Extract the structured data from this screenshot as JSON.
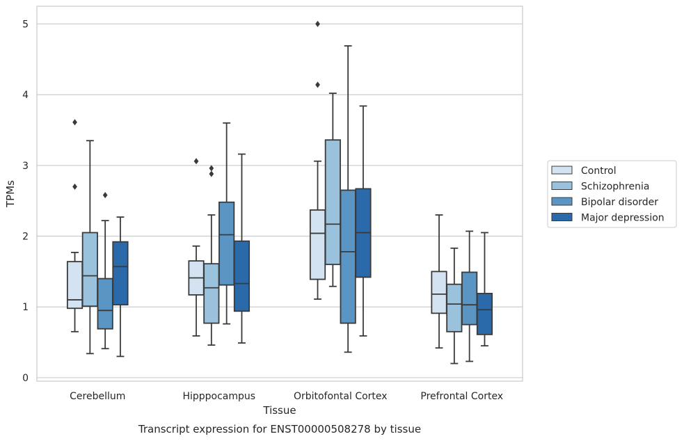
{
  "chart_data": {
    "type": "boxplot",
    "title": "",
    "caption": "Transcript expression for ENST00000508278 by tissue",
    "xlabel": "Tissue",
    "ylabel": "TPMs",
    "ylim": [
      -0.05,
      5.25
    ],
    "yticks": [
      0,
      1,
      2,
      3,
      4,
      5
    ],
    "grid": "horizontal",
    "legend_position": "right",
    "categories": [
      "Cerebellum",
      "Hipppocampus",
      "Orbitofontal Cortex",
      "Prefrontal Cortex"
    ],
    "series": [
      {
        "name": "Control",
        "color": "#d3e3f2",
        "boxes": [
          {
            "whislo": 0.65,
            "q1": 0.98,
            "med": 1.1,
            "q3": 1.64,
            "whishi": 1.77,
            "fliers": [
              2.7,
              3.61
            ]
          },
          {
            "whislo": 0.59,
            "q1": 1.17,
            "med": 1.41,
            "q3": 1.65,
            "whishi": 1.86,
            "fliers": [
              3.06
            ]
          },
          {
            "whislo": 1.11,
            "q1": 1.39,
            "med": 2.04,
            "q3": 2.37,
            "whishi": 3.06,
            "fliers": [
              4.14,
              5.0
            ]
          },
          {
            "whislo": 0.42,
            "q1": 0.91,
            "med": 1.18,
            "q3": 1.5,
            "whishi": 2.3,
            "fliers": []
          }
        ]
      },
      {
        "name": "Schizophrenia",
        "color": "#9ac2dc",
        "boxes": [
          {
            "whislo": 0.34,
            "q1": 1.01,
            "med": 1.44,
            "q3": 2.05,
            "whishi": 3.35,
            "fliers": []
          },
          {
            "whislo": 0.46,
            "q1": 0.77,
            "med": 1.27,
            "q3": 1.61,
            "whishi": 2.3,
            "fliers": [
              2.88,
              2.96
            ]
          },
          {
            "whislo": 1.29,
            "q1": 1.6,
            "med": 2.17,
            "q3": 3.36,
            "whishi": 4.02,
            "fliers": []
          },
          {
            "whislo": 0.2,
            "q1": 0.65,
            "med": 1.04,
            "q3": 1.32,
            "whishi": 1.83,
            "fliers": []
          }
        ]
      },
      {
        "name": "Bipolar disorder",
        "color": "#5a95c4",
        "boxes": [
          {
            "whislo": 0.41,
            "q1": 0.69,
            "med": 0.95,
            "q3": 1.4,
            "whishi": 2.22,
            "fliers": [
              2.58
            ]
          },
          {
            "whislo": 0.76,
            "q1": 1.31,
            "med": 2.02,
            "q3": 2.48,
            "whishi": 3.6,
            "fliers": []
          },
          {
            "whislo": 0.36,
            "q1": 0.77,
            "med": 1.78,
            "q3": 2.65,
            "whishi": 4.69,
            "fliers": []
          },
          {
            "whislo": 0.23,
            "q1": 0.75,
            "med": 1.03,
            "q3": 1.49,
            "whishi": 2.07,
            "fliers": []
          }
        ]
      },
      {
        "name": "Major depression",
        "color": "#2a69aa",
        "boxes": [
          {
            "whislo": 0.3,
            "q1": 1.03,
            "med": 1.57,
            "q3": 1.92,
            "whishi": 2.27,
            "fliers": []
          },
          {
            "whislo": 0.49,
            "q1": 0.94,
            "med": 1.33,
            "q3": 1.93,
            "whishi": 3.16,
            "fliers": []
          },
          {
            "whislo": 0.59,
            "q1": 1.42,
            "med": 2.05,
            "q3": 2.67,
            "whishi": 3.84,
            "fliers": []
          },
          {
            "whislo": 0.45,
            "q1": 0.61,
            "med": 0.96,
            "q3": 1.19,
            "whishi": 2.05,
            "fliers": []
          }
        ]
      }
    ]
  }
}
